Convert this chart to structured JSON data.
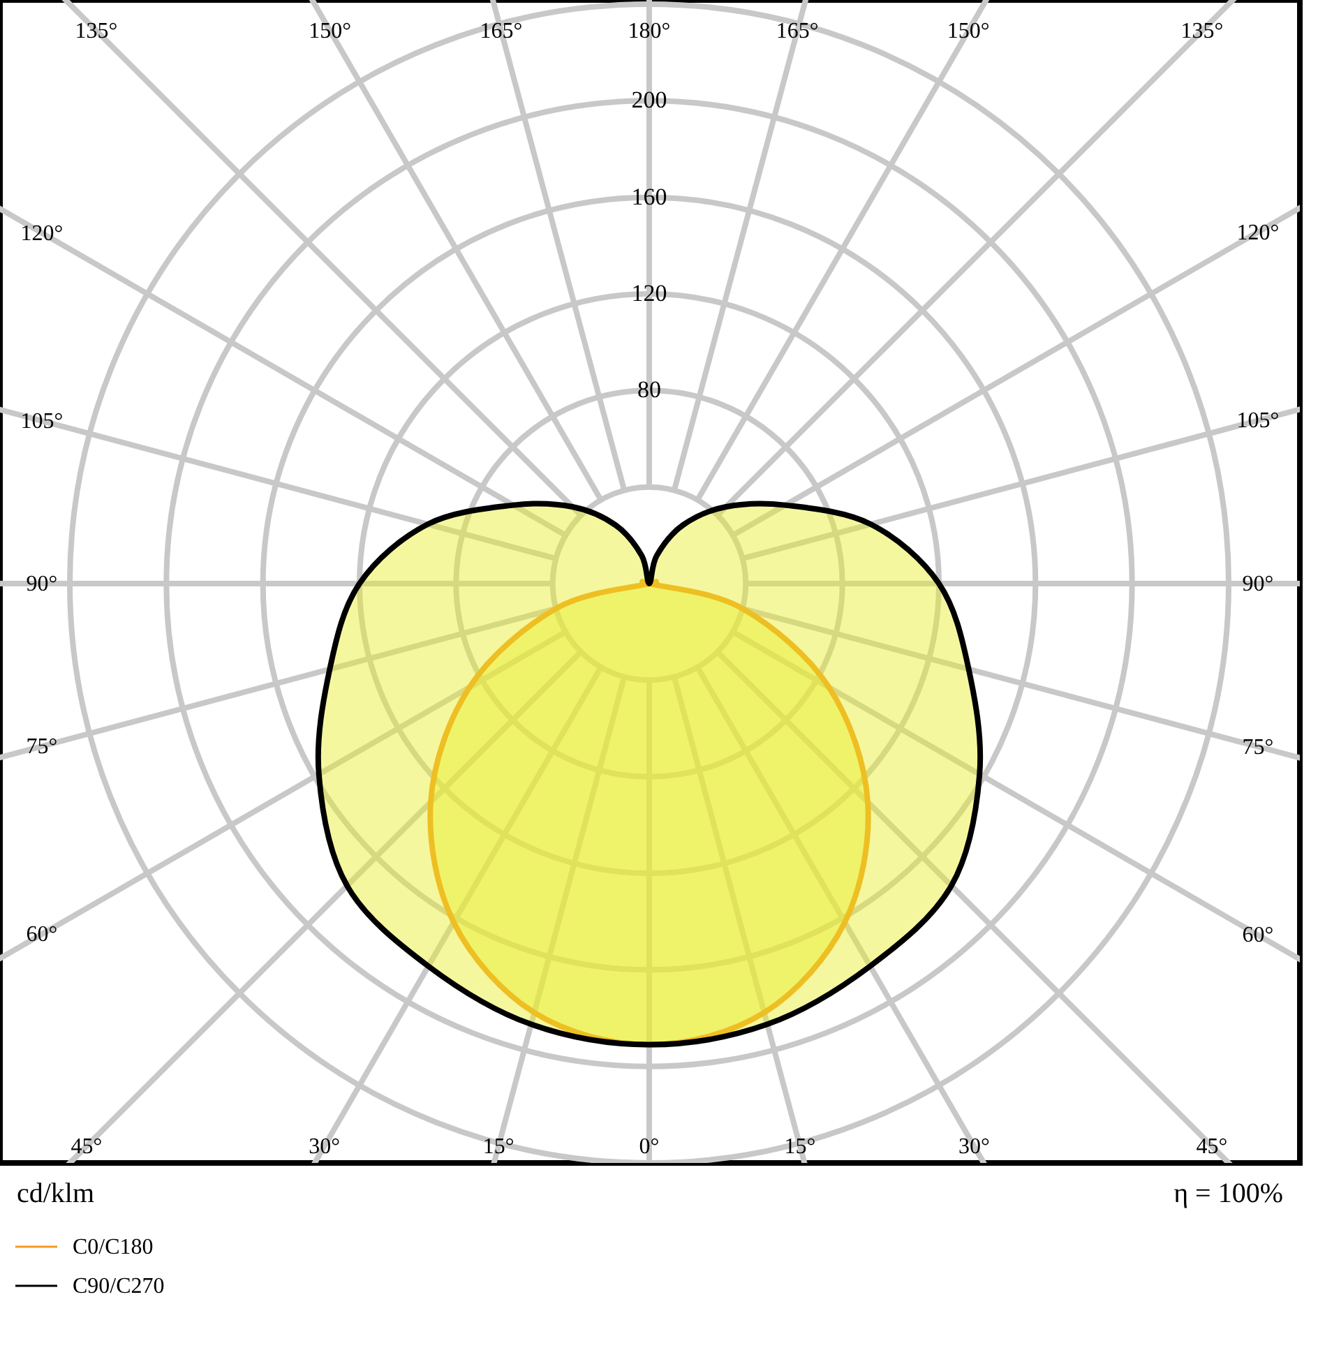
{
  "chart_data": {
    "type": "radar",
    "categories": [
      "180°",
      "165°",
      "150°",
      "135°",
      "120°",
      "105°",
      "90°",
      "75°",
      "60°",
      "45°",
      "30°",
      "15°",
      "0°",
      "15°",
      "30°",
      "45°",
      "60°",
      "75°",
      "90°",
      "105°",
      "120°",
      "135°",
      "150°",
      "165°"
    ],
    "series": [
      {
        "name": "C0/C180",
        "color": "#f39a1e",
        "values": [
          0,
          0,
          0,
          0,
          0,
          0,
          0,
          40,
          86,
          128,
          162,
          184,
          191,
          184,
          162,
          128,
          86,
          40,
          0,
          0,
          0,
          0,
          0,
          0
        ]
      },
      {
        "name": "C90/C270",
        "color": "#000000",
        "values": [
          0,
          12,
          28,
          45,
          65,
          95,
          120,
          137,
          158,
          177,
          183,
          189,
          191,
          189,
          183,
          177,
          158,
          137,
          120,
          95,
          65,
          45,
          28,
          12
        ]
      }
    ],
    "ylim": [
      0,
      240
    ],
    "yticks": [
      80,
      120,
      160,
      200
    ],
    "ylabel": "cd/klm",
    "annotations": [
      "η = 100%"
    ],
    "grid": true,
    "legend": "bottom left"
  }
}
